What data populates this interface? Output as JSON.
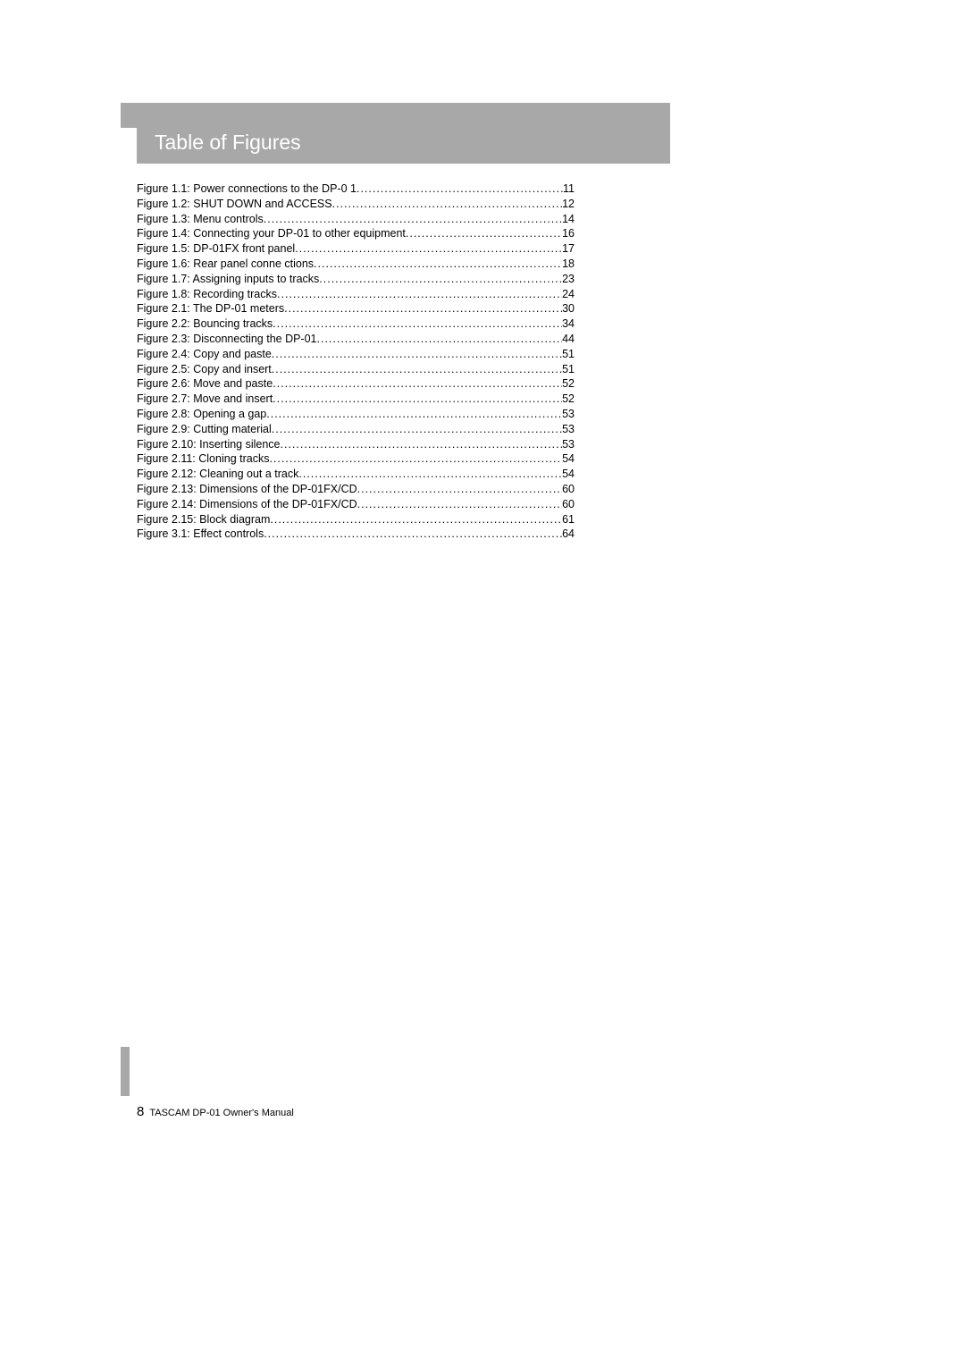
{
  "header": {
    "title": "Table of Figures",
    "background_color": "#a8a8a8",
    "title_color": "#ffffff",
    "title_fontsize": 23
  },
  "entries": [
    {
      "label": "Figure 1.1: Power connections to the DP-0   1 ",
      "page": "11"
    },
    {
      "label": "Figure 1.2: SHUT DOWN and ACCESS  ",
      "page": "12"
    },
    {
      "label": "Figure 1.3: Menu controls  ",
      "page": "14"
    },
    {
      "label": "Figure 1.4: Connecting your    DP-01 to other equipment ",
      "page": "16"
    },
    {
      "label": "Figure 1.5: DP-01FX front panel ",
      "page": "17"
    },
    {
      "label": "Figure 1.6: Rear panel conne   ctions ",
      "page": "18"
    },
    {
      "label": "Figure 1.7: Assigning inputs to tracks  ",
      "page": "23"
    },
    {
      "label": "Figure 1.8: Recording tracks ",
      "page": "24"
    },
    {
      "label": "Figure 2.1: The DP-01 meters ",
      "page": "30"
    },
    {
      "label": "Figure 2.2: Bouncing tracks ",
      "page": "34"
    },
    {
      "label": "Figure 2.3: Disconnecting the    DP-01 ",
      "page": "44"
    },
    {
      "label": "Figure 2.4: Copy and paste  ",
      "page": "51"
    },
    {
      "label": "Figure 2.5: Copy and insert  ",
      "page": "51"
    },
    {
      "label": "Figure 2.6: Move and paste  ",
      "page": "52"
    },
    {
      "label": "Figure 2.7: Move and insert ",
      "page": "52"
    },
    {
      "label": "Figure 2.8: Opening a gap  ",
      "page": "53"
    },
    {
      "label": "Figure 2.9: Cutting material  ",
      "page": "53"
    },
    {
      "label": "Figure 2.10: Inserting silence  ",
      "page": "53"
    },
    {
      "label": "Figure 2.11: Cloning tracks  ",
      "page": "54"
    },
    {
      "label": "Figure 2.12: Cleaning out a track  ",
      "page": "54"
    },
    {
      "label": "Figure 2.13: Dimensions of the DP-01FX/CD  ",
      "page": "60"
    },
    {
      "label": "Figure 2.14: Dimensions of the DP-01FX/CD  ",
      "page": "60"
    },
    {
      "label": "Figure 2.15: Block diagram  ",
      "page": "61"
    },
    {
      "label": "Figure 3.1: Effect controls  ",
      "page": "64"
    }
  ],
  "entry_style": {
    "fontsize": 12.5,
    "line_height": 16.8,
    "text_color": "#000000"
  },
  "footer": {
    "page_number": "8",
    "text": "TASCAM DP-01 Owner's Manual",
    "bar_color": "#a8a8a8"
  }
}
